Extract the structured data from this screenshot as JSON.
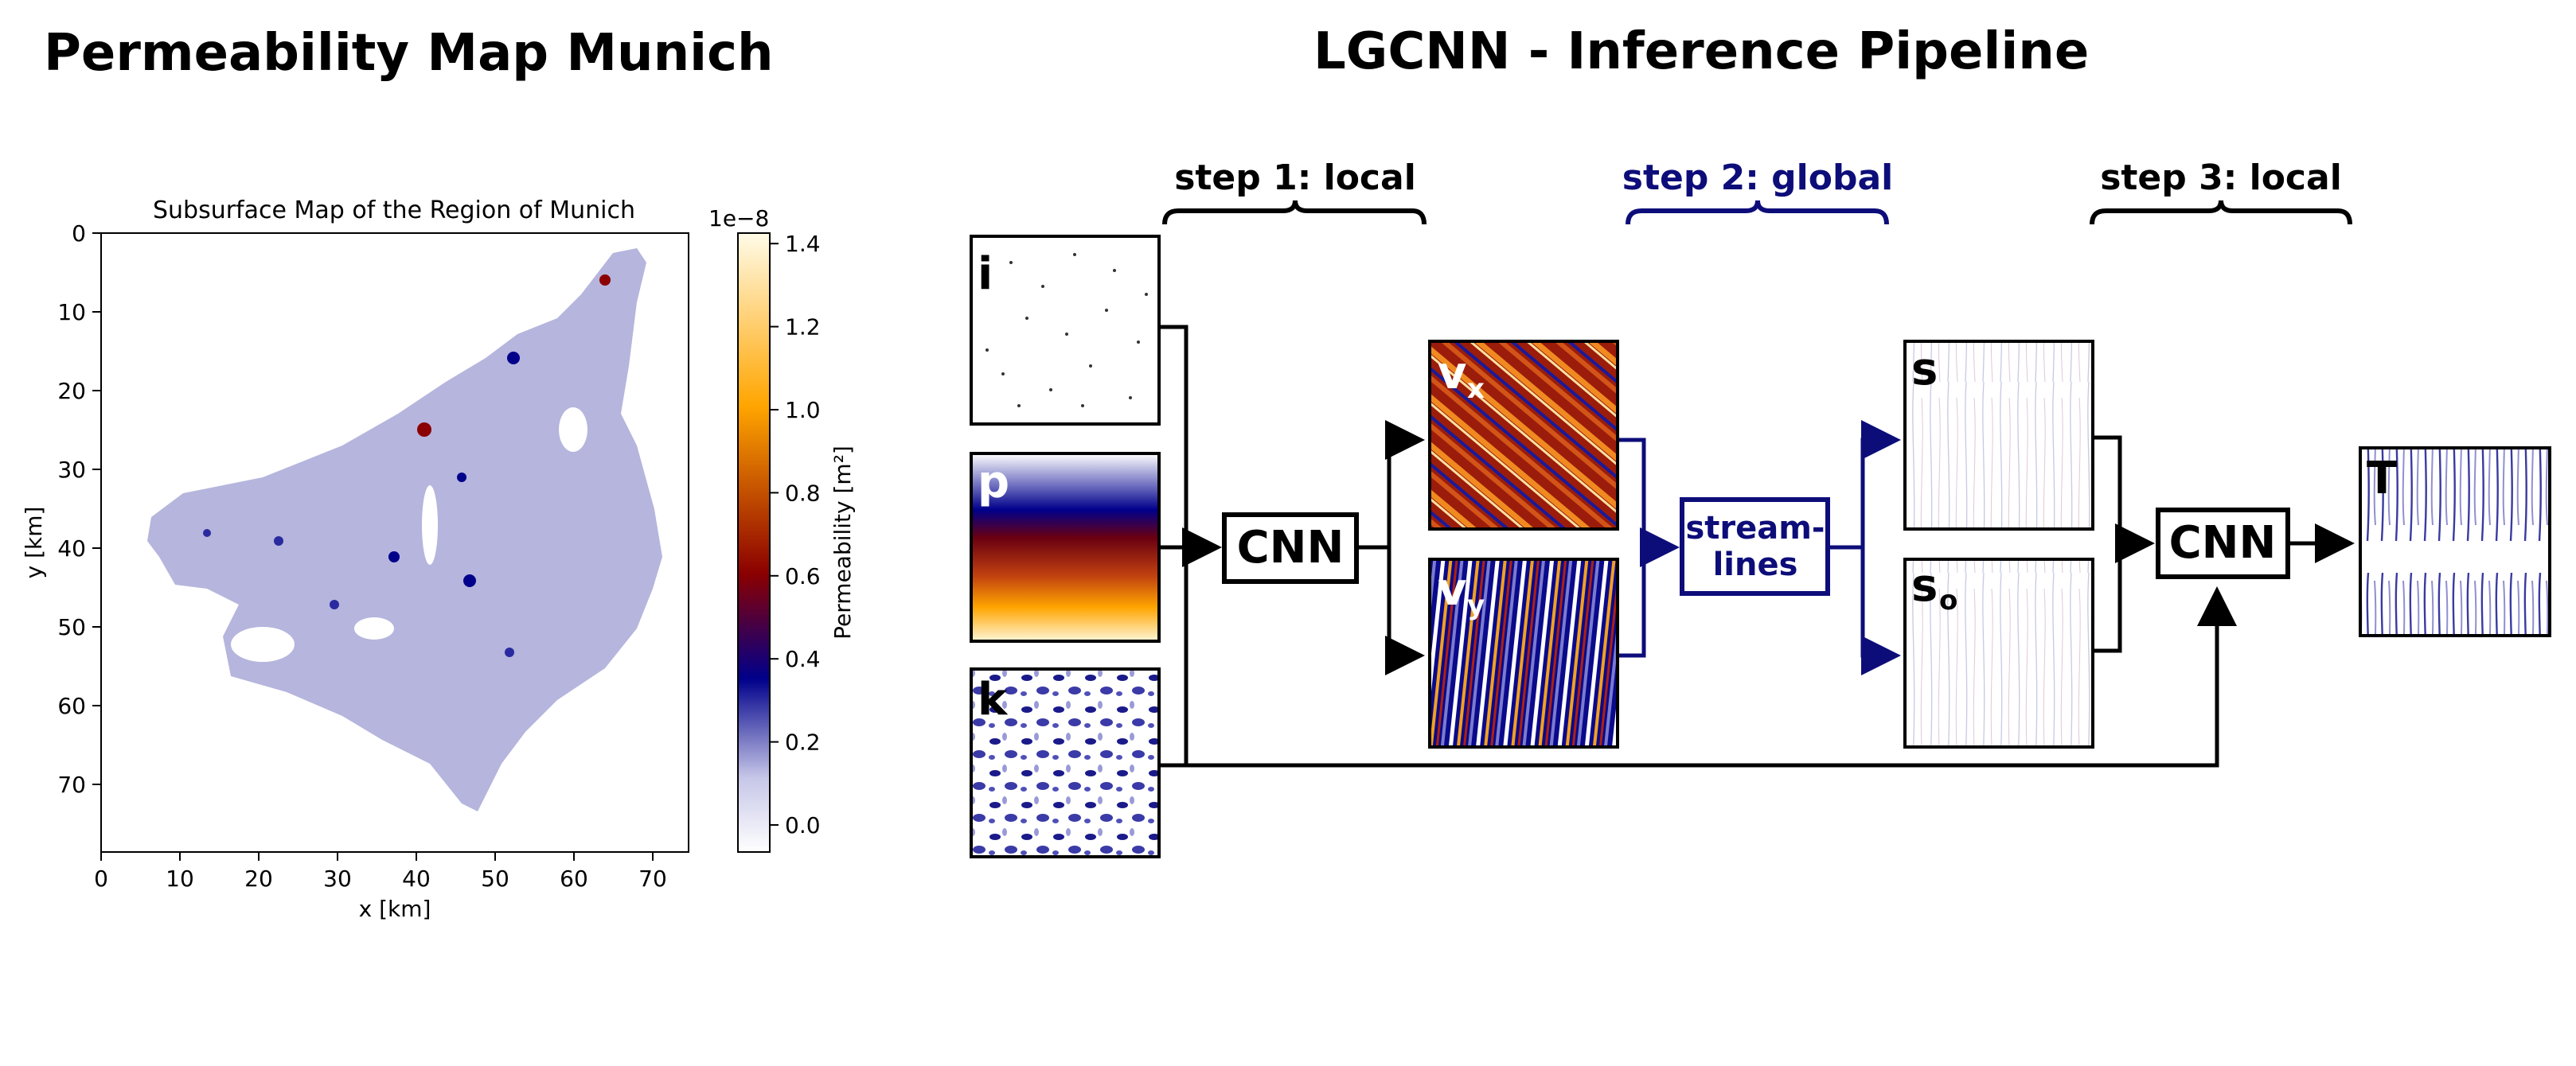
{
  "left_panel": {
    "title": "Permeability Map Munich",
    "map": {
      "title": "Subsurface Map of the Region of Munich",
      "xlabel": "x [km]",
      "ylabel": "y [km]",
      "x_ticks": [
        "0",
        "10",
        "20",
        "30",
        "40",
        "50",
        "60",
        "70"
      ],
      "y_ticks": [
        "0",
        "10",
        "20",
        "30",
        "40",
        "50",
        "60",
        "70"
      ]
    },
    "colorbar": {
      "label": "Permeability [m²]",
      "exponent": "1e−8",
      "ticks": [
        "0.0",
        "0.2",
        "0.4",
        "0.6",
        "0.8",
        "1.0",
        "1.2",
        "1.4"
      ],
      "colors": [
        "#ffffff",
        "#c6c6e8",
        "#00008b",
        "#8b0000",
        "#ffa500",
        "#fffbe8"
      ]
    }
  },
  "right_panel": {
    "title": "LGCNN - Inference Pipeline",
    "steps": {
      "step1": "step 1: local",
      "step2": "step 2: global",
      "step3": "step 3: local"
    },
    "inputs": {
      "i": "i",
      "p": "p",
      "k": "k"
    },
    "velocities": {
      "vx_main": "v",
      "vx_sub": "x",
      "vy_main": "v",
      "vy_sub": "y"
    },
    "cnn1": "CNN",
    "streamlines": {
      "line1": "stream-",
      "line2": "lines"
    },
    "streamfields": {
      "s": "s",
      "so_main": "s",
      "so_sub": "o"
    },
    "cnn2": "CNN",
    "output": "T",
    "colors": {
      "global_accent": "#0d0d7a",
      "line": "#000000"
    }
  }
}
